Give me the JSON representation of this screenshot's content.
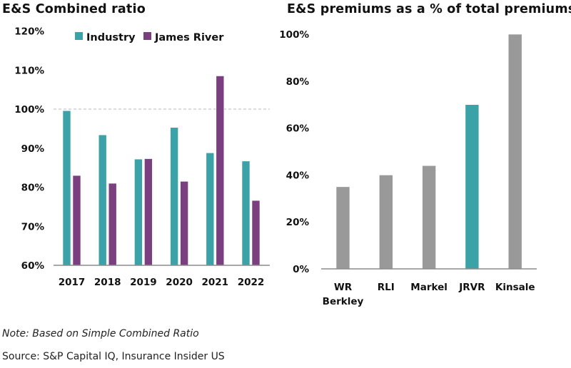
{
  "chart_data": [
    {
      "type": "bar",
      "title": "E&S Combined ratio",
      "xlabel": "",
      "ylabel": "",
      "categories": [
        "2017",
        "2018",
        "2019",
        "2020",
        "2021",
        "2022"
      ],
      "series": [
        {
          "name": "Industry",
          "color": "#3BA3A8",
          "values": [
            99.6,
            93.4,
            87.2,
            95.3,
            88.8,
            86.7
          ]
        },
        {
          "name": "James River",
          "color": "#7B3F80",
          "values": [
            83.0,
            81.0,
            87.3,
            81.5,
            108.5,
            76.6
          ]
        }
      ],
      "ylim": [
        60,
        120
      ],
      "yticks": [
        60,
        70,
        80,
        90,
        100,
        110,
        120
      ],
      "ytick_labels": [
        "60%",
        "70%",
        "80%",
        "90%",
        "100%",
        "110%",
        "120%"
      ],
      "reference_line": {
        "value": 100,
        "style": "dashed"
      },
      "legend": "top-center",
      "grid": false
    },
    {
      "type": "bar",
      "title": "E&S premiums as a % of total premiums",
      "xlabel": "",
      "ylabel": "",
      "categories": [
        [
          "WR",
          "Berkley"
        ],
        [
          "RLI"
        ],
        [
          "Markel"
        ],
        [
          "JRVR"
        ],
        [
          "Kinsale"
        ]
      ],
      "values": [
        35,
        40,
        44,
        70,
        100
      ],
      "colors": [
        "#999999",
        "#999999",
        "#999999",
        "#3BA3A8",
        "#999999"
      ],
      "highlight": "JRVR",
      "ylim": [
        0,
        100
      ],
      "yticks": [
        0,
        20,
        40,
        60,
        80,
        100
      ],
      "ytick_labels": [
        "0%",
        "20%",
        "40%",
        "60%",
        "80%",
        "100%"
      ],
      "legend": "none",
      "grid": false
    }
  ],
  "footer": {
    "note": "Note: Based on Simple Combined Ratio",
    "source": "Source: S&P Capital IQ, Insurance Insider US"
  }
}
